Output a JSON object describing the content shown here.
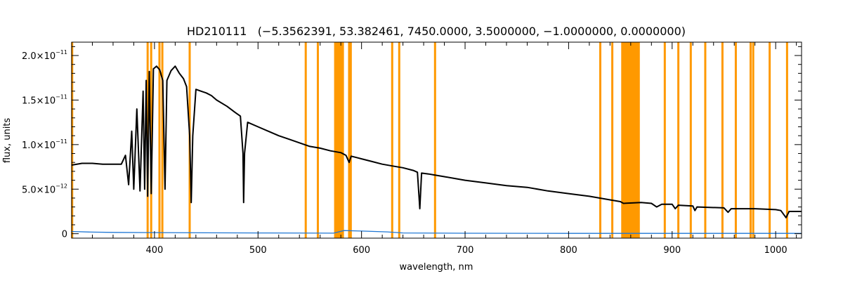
{
  "chart_data": {
    "type": "line",
    "title": "HD210111   (−5.3562391, 53.382461, 7450.0000, 3.5000000, −1.0000000, 0.0000000)",
    "xlabel": "wavelength, nm",
    "ylabel": "flux, units",
    "xlim": [
      320,
      1025
    ],
    "ylim": [
      -5e-13,
      2.15e-11
    ],
    "grid": false,
    "x_ticks": [
      {
        "value": 400,
        "label": "400"
      },
      {
        "value": 500,
        "label": "500"
      },
      {
        "value": 600,
        "label": "600"
      },
      {
        "value": 700,
        "label": "700"
      },
      {
        "value": 800,
        "label": "800"
      },
      {
        "value": 900,
        "label": "900"
      },
      {
        "value": 1000,
        "label": "1000"
      }
    ],
    "y_ticks": [
      {
        "value": 0,
        "mant": "0",
        "exp": ""
      },
      {
        "value": 5e-12,
        "mant": "5.0×10",
        "exp": "−12"
      },
      {
        "value": 1e-11,
        "mant": "1.0×10",
        "exp": "−11"
      },
      {
        "value": 1.5e-11,
        "mant": "1.5×10",
        "exp": "−11"
      },
      {
        "value": 2e-11,
        "mant": "2.0×10",
        "exp": "−11"
      }
    ],
    "colors": {
      "spectrum": "#000000",
      "error": "#1f77d4",
      "mask": "#ff9900",
      "axis": "#000000"
    },
    "masked_lines_nm": [
      320.5,
      393.4,
      396.8,
      404.8,
      407.6,
      434.0,
      546.1,
      557.8,
      588.0,
      589.6,
      629.6,
      636.4,
      671.0,
      830.6,
      842.2,
      892.9,
      906.0,
      918.0,
      932.0,
      948.6,
      961.5,
      975.8,
      978.3,
      994.2,
      1011.0
    ],
    "masked_bands_nm": [
      [
        573.5,
        583.0
      ],
      [
        850.8,
        868.8
      ]
    ],
    "spectrum": [
      [
        320,
        7.7e-12
      ],
      [
        330,
        7.9e-12
      ],
      [
        340,
        7.9e-12
      ],
      [
        350,
        7.8e-12
      ],
      [
        360,
        7.8e-12
      ],
      [
        368,
        7.8e-12
      ],
      [
        372,
        8.8e-12
      ],
      [
        375,
        5.5e-12
      ],
      [
        378,
        1.15e-11
      ],
      [
        380,
        5e-12
      ],
      [
        383,
        1.4e-11
      ],
      [
        386,
        4.8e-12
      ],
      [
        389,
        1.6e-11
      ],
      [
        390.5,
        5e-12
      ],
      [
        392,
        1.72e-11
      ],
      [
        393.4,
        4.2e-12
      ],
      [
        395,
        1.82e-11
      ],
      [
        396.9,
        4.5e-12
      ],
      [
        399,
        1.85e-11
      ],
      [
        402,
        1.88e-11
      ],
      [
        405,
        1.84e-11
      ],
      [
        408,
        1.72e-11
      ],
      [
        410.2,
        5e-12
      ],
      [
        412,
        1.72e-11
      ],
      [
        416,
        1.83e-11
      ],
      [
        420,
        1.88e-11
      ],
      [
        424,
        1.8e-11
      ],
      [
        428,
        1.74e-11
      ],
      [
        431,
        1.65e-11
      ],
      [
        434,
        1.1e-11
      ],
      [
        435.5,
        3.5e-12
      ],
      [
        437,
        1.1e-11
      ],
      [
        440,
        1.62e-11
      ],
      [
        445,
        1.6e-11
      ],
      [
        450,
        1.58e-11
      ],
      [
        455,
        1.55e-11
      ],
      [
        460,
        1.5e-11
      ],
      [
        470,
        1.43e-11
      ],
      [
        478,
        1.36e-11
      ],
      [
        483,
        1.32e-11
      ],
      [
        485.5,
        9e-12
      ],
      [
        486.1,
        3.5e-12
      ],
      [
        487,
        9e-12
      ],
      [
        490,
        1.25e-11
      ],
      [
        500,
        1.2e-11
      ],
      [
        510,
        1.15e-11
      ],
      [
        520,
        1.1e-11
      ],
      [
        530,
        1.06e-11
      ],
      [
        540,
        1.02e-11
      ],
      [
        550,
        9.8e-12
      ],
      [
        560,
        9.6e-12
      ],
      [
        570,
        9.3e-12
      ],
      [
        580,
        9.1e-12
      ],
      [
        585,
        8.8e-12
      ],
      [
        588.0,
        8e-12
      ],
      [
        590,
        8.7e-12
      ],
      [
        600,
        8.4e-12
      ],
      [
        610,
        8.1e-12
      ],
      [
        620,
        7.8e-12
      ],
      [
        630,
        7.6e-12
      ],
      [
        640,
        7.4e-12
      ],
      [
        650,
        7.1e-12
      ],
      [
        654,
        6.9e-12
      ],
      [
        656.3,
        2.8e-12
      ],
      [
        658,
        6.8e-12
      ],
      [
        665,
        6.7e-12
      ],
      [
        670,
        6.6e-12
      ],
      [
        680,
        6.4e-12
      ],
      [
        700,
        6e-12
      ],
      [
        720,
        5.7e-12
      ],
      [
        740,
        5.4e-12
      ],
      [
        760,
        5.2e-12
      ],
      [
        780,
        4.8e-12
      ],
      [
        800,
        4.5e-12
      ],
      [
        820,
        4.2e-12
      ],
      [
        840,
        3.8e-12
      ],
      [
        850,
        3.6e-12
      ],
      [
        853,
        3.4e-12
      ],
      [
        870,
        3.5e-12
      ],
      [
        880,
        3.4e-12
      ],
      [
        885,
        3e-12
      ],
      [
        890,
        3.3e-12
      ],
      [
        900,
        3.3e-12
      ],
      [
        903,
        2.8e-12
      ],
      [
        906,
        3.2e-12
      ],
      [
        920,
        3.1e-12
      ],
      [
        922,
        2.6e-12
      ],
      [
        924,
        3e-12
      ],
      [
        950,
        2.9e-12
      ],
      [
        954,
        2.4e-12
      ],
      [
        957,
        2.8e-12
      ],
      [
        980,
        2.8e-12
      ],
      [
        1000,
        2.7e-12
      ],
      [
        1005,
        2.6e-12
      ],
      [
        1010,
        1.8e-12
      ],
      [
        1013,
        2.5e-12
      ],
      [
        1025,
        2.5e-12
      ]
    ],
    "error": [
      [
        320,
        2.5e-13
      ],
      [
        340,
        1.8e-13
      ],
      [
        360,
        1.5e-13
      ],
      [
        400,
        1.2e-13
      ],
      [
        450,
        1e-13
      ],
      [
        500,
        8e-14
      ],
      [
        573,
        6e-14
      ],
      [
        583,
        3.5e-13
      ],
      [
        600,
        3e-13
      ],
      [
        625,
        2e-13
      ],
      [
        640,
        8e-14
      ],
      [
        700,
        5e-14
      ],
      [
        800,
        4e-14
      ],
      [
        900,
        4e-14
      ],
      [
        1025,
        4e-14
      ]
    ]
  }
}
